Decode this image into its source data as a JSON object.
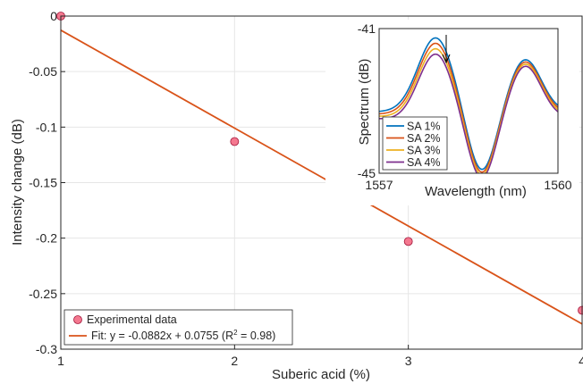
{
  "chart_data": [
    {
      "type": "scatter",
      "xlabel": "Suberic acid (%)",
      "ylabel": "Intensity change (dB)",
      "xlim": [
        1,
        4
      ],
      "ylim": [
        -0.3,
        0
      ],
      "xticks": [
        1,
        2,
        3,
        4
      ],
      "xtick_labels": [
        "1",
        "2",
        "3",
        "4"
      ],
      "yticks": [
        0,
        -0.05,
        -0.1,
        -0.15,
        -0.2,
        -0.25,
        -0.3
      ],
      "ytick_labels": [
        "0",
        "-0.05",
        "-0.1",
        "-0.15",
        "-0.2",
        "-0.25",
        "-0.3"
      ],
      "grid": true,
      "legend_position": "bottom-left",
      "series": [
        {
          "name": "Experimental data",
          "kind": "marker",
          "color": "#f4788f",
          "x": [
            1,
            2,
            3,
            4
          ],
          "y": [
            0,
            -0.113,
            -0.203,
            -0.265
          ]
        },
        {
          "name": "Fit: y = -0.0882x + 0.0755 (R² = 0.98)",
          "kind": "line",
          "color": "#d95319",
          "x": [
            1,
            4
          ],
          "y": [
            -0.0127,
            -0.2773
          ]
        }
      ],
      "legend": {
        "marker_label": "Experimental data",
        "fit_label_prefix": "Fit: y = -0.0882x + 0.0755 (R",
        "fit_label_sup": "2",
        "fit_label_suffix": " = 0.98)"
      }
    },
    {
      "type": "line",
      "xlabel": "Wavelength (nm)",
      "ylabel": "Spectrum (dB)",
      "xlim": [
        1557,
        1560
      ],
      "ylim": [
        -45,
        -41
      ],
      "xticks": [
        1557,
        1560
      ],
      "xtick_labels": [
        "1557",
        "1560"
      ],
      "yticks": [
        -41,
        -45
      ],
      "ytick_labels": [
        "-41",
        "-45"
      ],
      "legend_position": "bottom-left",
      "annotation": "downward-arrow",
      "series": [
        {
          "name": "SA 1%",
          "color": "#0072bd",
          "shift": 0.0
        },
        {
          "name": "SA 2%",
          "color": "#d95319",
          "shift": 0.15
        },
        {
          "name": "SA 3%",
          "color": "#edb120",
          "shift": 0.3
        },
        {
          "name": "SA 4%",
          "color": "#7e2f8e",
          "shift": 0.45
        }
      ]
    }
  ]
}
